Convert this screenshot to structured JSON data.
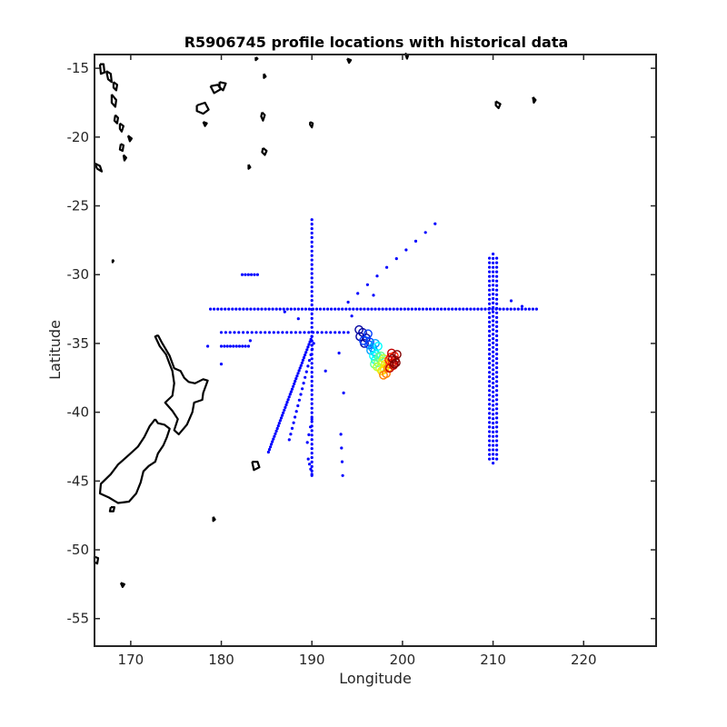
{
  "chart_data": {
    "type": "scatter",
    "title": "R5906745 profile locations with historical data",
    "xlabel": "Longitude",
    "ylabel": "Latitude",
    "xlim": [
      166,
      228
    ],
    "ylim": [
      -57,
      -14
    ],
    "xticks": [
      170,
      180,
      190,
      200,
      210,
      220
    ],
    "yticks": [
      -15,
      -20,
      -25,
      -30,
      -35,
      -40,
      -45,
      -50,
      -55
    ],
    "grid": false,
    "legend": "none",
    "colors": {
      "historical": "#0000ff",
      "coastline": "#000000",
      "profile_track": [
        "#0000a0",
        "#0040ff",
        "#00a0ff",
        "#00ffff",
        "#60ff90",
        "#c0ff30",
        "#ffe000",
        "#ff8000",
        "#ff2000",
        "#c00000",
        "#800000"
      ]
    },
    "series": [
      {
        "marker": "dot",
        "color": "#0000ff",
        "lines": [
          {
            "from": [
              178.8,
              -32.5
            ],
            "to": [
              214.8,
              -32.5
            ],
            "n": 90
          },
          {
            "from": [
              190.0,
              -26.0
            ],
            "to": [
              190.0,
              -44.6
            ],
            "n": 58
          },
          {
            "from": [
              210.0,
              -28.5
            ],
            "to": [
              210.0,
              -43.7
            ],
            "n": 48
          },
          {
            "from": [
              209.6,
              -28.8
            ],
            "to": [
              209.6,
              -43.4
            ],
            "n": 45
          },
          {
            "from": [
              210.4,
              -28.8
            ],
            "to": [
              210.4,
              -43.4
            ],
            "n": 45
          },
          {
            "from": [
              180.0,
              -34.2
            ],
            "to": [
              194.0,
              -34.2
            ],
            "n": 30
          },
          {
            "from": [
              180.0,
              -35.2
            ],
            "to": [
              183.0,
              -35.2
            ],
            "n": 10
          },
          {
            "from": [
              182.3,
              -30.0
            ],
            "to": [
              184.0,
              -30.0
            ],
            "n": 6
          },
          {
            "from": [
              185.2,
              -42.9
            ],
            "to": [
              190.0,
              -34.5
            ],
            "n": 45
          },
          {
            "from": [
              187.5,
              -42.0
            ],
            "to": [
              190.2,
              -35.0
            ],
            "n": 18
          },
          {
            "from": [
              189.5,
              -42.2
            ],
            "to": [
              190.0,
              -40.5
            ],
            "n": 4
          },
          {
            "from": [
              189.6,
              -43.4
            ],
            "to": [
              190.0,
              -44.5
            ],
            "n": 4
          },
          {
            "from": [
              194.0,
              -32.0
            ],
            "to": [
              203.6,
              -26.3
            ],
            "n": 10
          },
          {
            "from": [
              193.2,
              -41.6
            ],
            "to": [
              193.4,
              -44.6
            ],
            "n": 4
          }
        ],
        "points": [
          [
            178.5,
            -35.2
          ],
          [
            180.0,
            -36.5
          ],
          [
            183.2,
            -34.8
          ],
          [
            191.5,
            -37.0
          ],
          [
            193.0,
            -35.7
          ],
          [
            196.8,
            -31.5
          ],
          [
            212.0,
            -31.9
          ],
          [
            213.2,
            -32.3
          ],
          [
            193.5,
            -38.6
          ],
          [
            194.4,
            -33.0
          ],
          [
            188.5,
            -33.2
          ],
          [
            187.0,
            -32.7
          ]
        ]
      }
    ],
    "profile_track": [
      [
        195.2,
        -34.0
      ],
      [
        195.6,
        -34.2
      ],
      [
        195.3,
        -34.5
      ],
      [
        196.0,
        -34.6
      ],
      [
        195.8,
        -35.0
      ],
      [
        196.2,
        -34.3
      ],
      [
        195.7,
        -34.8
      ],
      [
        196.4,
        -34.9
      ],
      [
        196.3,
        -35.1
      ],
      [
        196.7,
        -35.3
      ],
      [
        196.5,
        -35.5
      ],
      [
        197.0,
        -35.0
      ],
      [
        196.9,
        -35.6
      ],
      [
        197.3,
        -35.2
      ],
      [
        196.8,
        -35.9
      ],
      [
        197.1,
        -35.8
      ],
      [
        197.0,
        -36.2
      ],
      [
        197.4,
        -36.0
      ],
      [
        196.9,
        -36.5
      ],
      [
        197.3,
        -36.4
      ],
      [
        197.6,
        -35.9
      ],
      [
        197.2,
        -36.7
      ],
      [
        197.8,
        -36.3
      ],
      [
        197.5,
        -36.8
      ],
      [
        197.9,
        -36.1
      ],
      [
        198.1,
        -36.5
      ],
      [
        197.7,
        -37.0
      ],
      [
        198.3,
        -36.6
      ],
      [
        198.0,
        -36.9
      ],
      [
        198.2,
        -37.2
      ],
      [
        197.9,
        -37.3
      ],
      [
        198.4,
        -36.8
      ],
      [
        198.6,
        -36.5
      ],
      [
        198.5,
        -36.2
      ],
      [
        198.9,
        -36.4
      ],
      [
        198.7,
        -36.0
      ],
      [
        199.1,
        -35.9
      ],
      [
        198.8,
        -35.7
      ],
      [
        199.2,
        -36.2
      ],
      [
        199.0,
        -36.6
      ],
      [
        198.6,
        -36.8
      ],
      [
        199.3,
        -36.4
      ],
      [
        198.9,
        -36.1
      ],
      [
        199.4,
        -35.8
      ],
      [
        199.1,
        -36.5
      ]
    ],
    "coastlines": [
      [
        [
          173.0,
          -34.4
        ],
        [
          173.4,
          -34.9
        ],
        [
          174.3,
          -35.9
        ],
        [
          174.8,
          -36.8
        ],
        [
          175.5,
          -37.0
        ],
        [
          175.9,
          -37.5
        ],
        [
          176.4,
          -37.8
        ],
        [
          177.1,
          -37.9
        ],
        [
          178.0,
          -37.6
        ],
        [
          178.5,
          -37.7
        ],
        [
          178.0,
          -38.6
        ],
        [
          177.9,
          -39.1
        ],
        [
          177.0,
          -39.3
        ],
        [
          176.8,
          -40.0
        ],
        [
          176.2,
          -40.9
        ],
        [
          175.3,
          -41.6
        ],
        [
          174.8,
          -41.3
        ],
        [
          175.2,
          -40.5
        ],
        [
          174.6,
          -39.9
        ],
        [
          173.8,
          -39.3
        ],
        [
          174.6,
          -38.8
        ],
        [
          174.8,
          -37.9
        ],
        [
          174.6,
          -37.0
        ],
        [
          174.3,
          -36.5
        ],
        [
          173.9,
          -35.8
        ],
        [
          173.2,
          -35.2
        ],
        [
          172.7,
          -34.5
        ],
        [
          173.0,
          -34.4
        ]
      ],
      [
        [
          172.7,
          -40.5
        ],
        [
          173.0,
          -40.8
        ],
        [
          173.7,
          -40.9
        ],
        [
          174.3,
          -41.2
        ],
        [
          174.0,
          -41.8
        ],
        [
          173.6,
          -42.4
        ],
        [
          173.0,
          -43.0
        ],
        [
          172.7,
          -43.6
        ],
        [
          172.0,
          -43.9
        ],
        [
          171.4,
          -44.3
        ],
        [
          171.1,
          -45.1
        ],
        [
          170.6,
          -45.9
        ],
        [
          169.8,
          -46.5
        ],
        [
          168.6,
          -46.6
        ],
        [
          167.6,
          -46.2
        ],
        [
          166.6,
          -45.9
        ],
        [
          166.7,
          -45.2
        ],
        [
          167.8,
          -44.5
        ],
        [
          168.6,
          -43.8
        ],
        [
          169.8,
          -43.1
        ],
        [
          170.8,
          -42.5
        ],
        [
          171.5,
          -41.8
        ],
        [
          172.1,
          -41.0
        ],
        [
          172.7,
          -40.5
        ]
      ],
      [
        [
          167.8,
          -46.9
        ],
        [
          168.2,
          -46.9
        ],
        [
          168.1,
          -47.2
        ],
        [
          167.7,
          -47.2
        ],
        [
          167.8,
          -46.9
        ]
      ],
      [
        [
          166.0,
          -21.9
        ],
        [
          166.6,
          -22.1
        ],
        [
          166.8,
          -22.5
        ],
        [
          166.3,
          -22.3
        ],
        [
          166.0,
          -21.9
        ]
      ],
      [
        [
          166.6,
          -14.7
        ],
        [
          167.0,
          -14.7
        ],
        [
          167.1,
          -15.3
        ],
        [
          166.7,
          -15.4
        ],
        [
          166.6,
          -14.7
        ]
      ],
      [
        [
          167.3,
          -15.2
        ],
        [
          167.8,
          -15.4
        ],
        [
          167.9,
          -16.0
        ],
        [
          167.5,
          -15.8
        ],
        [
          167.3,
          -15.2
        ]
      ],
      [
        [
          168.1,
          -16.0
        ],
        [
          168.5,
          -16.2
        ],
        [
          168.4,
          -16.6
        ],
        [
          168.1,
          -16.4
        ],
        [
          168.1,
          -16.0
        ]
      ],
      [
        [
          167.9,
          -16.9
        ],
        [
          168.4,
          -17.3
        ],
        [
          168.3,
          -17.8
        ],
        [
          167.9,
          -17.5
        ],
        [
          167.9,
          -16.9
        ]
      ],
      [
        [
          168.3,
          -18.4
        ],
        [
          168.6,
          -18.6
        ],
        [
          168.5,
          -19.0
        ],
        [
          168.2,
          -18.8
        ],
        [
          168.3,
          -18.4
        ]
      ],
      [
        [
          168.8,
          -19.0
        ],
        [
          169.2,
          -19.2
        ],
        [
          169.0,
          -19.6
        ],
        [
          168.8,
          -19.4
        ],
        [
          168.8,
          -19.0
        ]
      ],
      [
        [
          169.7,
          -19.9
        ],
        [
          170.1,
          -20.1
        ],
        [
          169.9,
          -20.3
        ],
        [
          169.7,
          -19.9
        ]
      ],
      [
        [
          168.9,
          -20.5
        ],
        [
          169.2,
          -20.6
        ],
        [
          169.1,
          -21.0
        ],
        [
          168.8,
          -20.9
        ],
        [
          168.9,
          -20.5
        ]
      ],
      [
        [
          169.2,
          -21.3
        ],
        [
          169.5,
          -21.5
        ],
        [
          169.3,
          -21.7
        ],
        [
          169.2,
          -21.3
        ]
      ],
      [
        [
          177.3,
          -17.7
        ],
        [
          178.2,
          -17.5
        ],
        [
          178.6,
          -18.0
        ],
        [
          178.0,
          -18.3
        ],
        [
          177.3,
          -18.1
        ],
        [
          177.3,
          -17.7
        ]
      ],
      [
        [
          178.8,
          -16.3
        ],
        [
          179.6,
          -16.2
        ],
        [
          180.0,
          -16.5
        ],
        [
          179.2,
          -16.8
        ],
        [
          178.8,
          -16.3
        ]
      ],
      [
        [
          179.8,
          -16.0
        ],
        [
          180.5,
          -16.1
        ],
        [
          180.2,
          -16.6
        ],
        [
          179.8,
          -16.4
        ],
        [
          179.8,
          -16.0
        ]
      ],
      [
        [
          178.0,
          -18.9
        ],
        [
          178.4,
          -19.0
        ],
        [
          178.2,
          -19.2
        ],
        [
          178.0,
          -18.9
        ]
      ],
      [
        [
          184.5,
          -18.2
        ],
        [
          184.8,
          -18.4
        ],
        [
          184.6,
          -18.8
        ],
        [
          184.4,
          -18.5
        ],
        [
          184.5,
          -18.2
        ]
      ],
      [
        [
          184.6,
          -20.8
        ],
        [
          185.0,
          -21.0
        ],
        [
          184.8,
          -21.3
        ],
        [
          184.5,
          -21.1
        ],
        [
          184.6,
          -20.8
        ]
      ],
      [
        [
          184.7,
          -15.4
        ],
        [
          184.9,
          -15.6
        ],
        [
          184.7,
          -15.7
        ],
        [
          184.7,
          -15.4
        ]
      ],
      [
        [
          189.8,
          -18.9
        ],
        [
          190.1,
          -19.0
        ],
        [
          190.0,
          -19.3
        ],
        [
          189.8,
          -19.1
        ],
        [
          189.8,
          -18.9
        ]
      ],
      [
        [
          193.9,
          -14.3
        ],
        [
          194.3,
          -14.4
        ],
        [
          194.1,
          -14.6
        ],
        [
          193.9,
          -14.3
        ]
      ],
      [
        [
          200.3,
          -13.9
        ],
        [
          200.6,
          -14.1
        ],
        [
          200.5,
          -14.3
        ],
        [
          200.3,
          -13.9
        ]
      ],
      [
        [
          210.3,
          -17.4
        ],
        [
          210.8,
          -17.6
        ],
        [
          210.6,
          -17.9
        ],
        [
          210.3,
          -17.7
        ],
        [
          210.3,
          -17.4
        ]
      ],
      [
        [
          214.4,
          -17.1
        ],
        [
          214.7,
          -17.3
        ],
        [
          214.5,
          -17.5
        ],
        [
          214.4,
          -17.1
        ]
      ],
      [
        [
          183.4,
          -43.6
        ],
        [
          184.0,
          -43.6
        ],
        [
          184.2,
          -44.0
        ],
        [
          183.6,
          -44.2
        ],
        [
          183.4,
          -43.6
        ]
      ],
      [
        [
          179.1,
          -47.6
        ],
        [
          179.3,
          -47.8
        ],
        [
          179.1,
          -47.9
        ],
        [
          179.1,
          -47.6
        ]
      ],
      [
        [
          166.0,
          -50.5
        ],
        [
          166.4,
          -50.6
        ],
        [
          166.3,
          -51.0
        ],
        [
          166.0,
          -50.9
        ],
        [
          166.0,
          -50.5
        ]
      ],
      [
        [
          168.9,
          -52.4
        ],
        [
          169.3,
          -52.5
        ],
        [
          169.1,
          -52.7
        ],
        [
          168.9,
          -52.4
        ]
      ],
      [
        [
          168.0,
          -28.9
        ],
        [
          168.1,
          -29.0
        ],
        [
          168.0,
          -29.1
        ],
        [
          168.0,
          -28.9
        ]
      ],
      [
        [
          183.0,
          -22.0
        ],
        [
          183.2,
          -22.2
        ],
        [
          183.0,
          -22.3
        ],
        [
          183.0,
          -22.0
        ]
      ],
      [
        [
          183.8,
          -14.2
        ],
        [
          184.0,
          -14.3
        ],
        [
          183.8,
          -14.4
        ],
        [
          183.8,
          -14.2
        ]
      ]
    ]
  }
}
